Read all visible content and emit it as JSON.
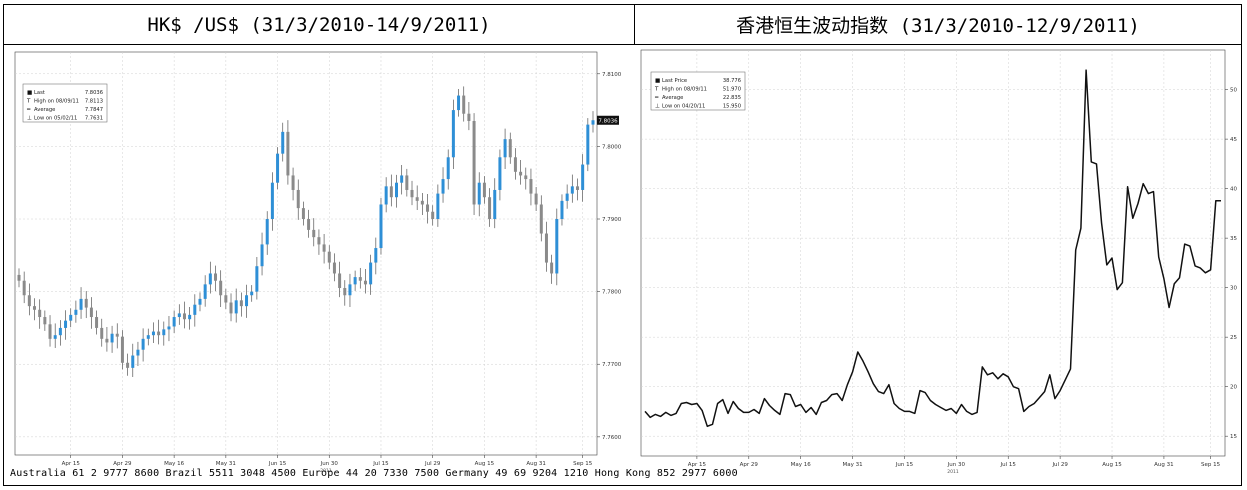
{
  "headers": {
    "left": "HK$ /US$ (31/3/2010-14/9/2011)",
    "right": "香港恒生波动指数 (31/3/2010-12/9/2011)"
  },
  "footer_text": "Australia 61 2 9777 8600 Brazil 5511 3048 4500 Europe 44 20 7330 7500 Germany 49 69 9204 1210 Hong Kong 852 2977 6000",
  "colors": {
    "up": "#2e8fd6",
    "down": "#8a8a8a",
    "line": "#111111",
    "grid": "#d0d0d0"
  },
  "chart_data": [
    {
      "type": "candlestick",
      "title": "HK$ /US$ (31/3/2010-14/9/2011)",
      "year_label": "2011",
      "ylim": [
        7.7575,
        7.813
      ],
      "yticks": [
        7.76,
        7.77,
        7.78,
        7.79,
        7.8,
        7.81
      ],
      "ytick_labels": [
        "7.7600",
        "7.7700",
        "7.7800",
        "7.7900",
        "7.8000",
        "7.8100"
      ],
      "xtick_labels": [
        "Apr 15",
        "Apr 29",
        "May 16",
        "May 31",
        "Jun 15",
        "Jun 30",
        "Jul 15",
        "Jul 29",
        "Aug 15",
        "Aug 31",
        "Sep 15"
      ],
      "xtick_index": [
        10,
        20,
        30,
        40,
        50,
        60,
        70,
        80,
        90,
        100,
        109
      ],
      "n_points": 112,
      "last_tag": "7.8036",
      "legend": [
        {
          "icon": "square",
          "label": "Last",
          "value": "7.8036"
        },
        {
          "icon": "high",
          "label": "High on 08/09/11",
          "value": "7.8113"
        },
        {
          "icon": "avg",
          "label": "Average",
          "value": "7.7847"
        },
        {
          "icon": "low",
          "label": "Low on 05/02/11",
          "value": "7.7631"
        }
      ],
      "closes": [
        7.7815,
        7.7795,
        7.778,
        7.7775,
        7.7765,
        7.7755,
        7.7735,
        7.774,
        7.775,
        7.776,
        7.7768,
        7.7775,
        7.779,
        7.7778,
        7.7765,
        7.775,
        7.7735,
        7.773,
        7.7742,
        7.7738,
        7.7702,
        7.7695,
        7.7712,
        7.772,
        7.7735,
        7.774,
        7.7745,
        7.774,
        7.7748,
        7.7752,
        7.7765,
        7.777,
        7.7762,
        7.7768,
        7.7782,
        7.779,
        7.781,
        7.7825,
        7.7815,
        7.7795,
        7.7785,
        7.777,
        7.7788,
        7.778,
        7.7795,
        7.78,
        7.7835,
        7.7865,
        7.79,
        7.795,
        7.799,
        7.802,
        7.796,
        7.794,
        7.7915,
        7.79,
        7.7885,
        7.7875,
        7.7865,
        7.7855,
        7.784,
        7.7825,
        7.7805,
        7.7795,
        7.781,
        7.782,
        7.7815,
        7.781,
        7.784,
        7.786,
        7.792,
        7.7945,
        7.793,
        7.795,
        7.796,
        7.794,
        7.793,
        7.7925,
        7.792,
        7.791,
        7.79,
        7.7935,
        7.7955,
        7.7985,
        7.805,
        7.807,
        7.8045,
        7.8035,
        7.792,
        7.795,
        7.793,
        7.79,
        7.794,
        7.7985,
        7.801,
        7.7985,
        7.7965,
        7.796,
        7.7955,
        7.7935,
        7.792,
        7.788,
        7.784,
        7.7825,
        7.79,
        7.7925,
        7.7935,
        7.7945,
        7.794,
        7.7975,
        7.803,
        7.8036
      ]
    },
    {
      "type": "line",
      "title": "香港恒生波动指数 (31/3/2010-12/9/2011)",
      "year_label": "2011",
      "ylim": [
        13,
        54
      ],
      "yticks": [
        15,
        20,
        25,
        30,
        35,
        40,
        45,
        50
      ],
      "ytick_labels": [
        "15",
        "20",
        "25",
        "30",
        "35",
        "40",
        "45",
        "50"
      ],
      "xtick_labels": [
        "Apr 15",
        "Apr 29",
        "May 16",
        "May 31",
        "Jun 15",
        "Jun 30",
        "Jul 15",
        "Jul 29",
        "Aug 15",
        "Aug 31",
        "Sep 15"
      ],
      "xtick_index": [
        10,
        20,
        30,
        40,
        50,
        60,
        70,
        80,
        90,
        100,
        109
      ],
      "n_points": 112,
      "legend": [
        {
          "icon": "square",
          "label": "Last Price",
          "value": "38.776"
        },
        {
          "icon": "high",
          "label": "High on 08/09/11",
          "value": "51.970"
        },
        {
          "icon": "avg",
          "label": "Average",
          "value": "22.835"
        },
        {
          "icon": "low",
          "label": "Low on 04/20/11",
          "value": "15.950"
        }
      ],
      "values": [
        17.5,
        16.9,
        17.2,
        17.0,
        17.4,
        17.1,
        17.3,
        18.3,
        18.4,
        18.2,
        18.3,
        17.6,
        16.0,
        16.2,
        18.3,
        18.7,
        17.3,
        18.5,
        17.8,
        17.4,
        17.4,
        17.7,
        17.3,
        18.8,
        18.1,
        17.6,
        17.2,
        19.3,
        19.2,
        18.0,
        18.2,
        17.4,
        17.9,
        17.2,
        18.4,
        18.6,
        19.2,
        19.3,
        18.6,
        20.2,
        21.5,
        23.5,
        22.6,
        21.5,
        20.3,
        19.5,
        19.3,
        20.2,
        18.3,
        17.8,
        17.5,
        17.5,
        17.3,
        19.6,
        19.4,
        18.6,
        18.2,
        17.9,
        17.6,
        17.8,
        17.3,
        18.2,
        17.5,
        17.2,
        17.4,
        22.0,
        21.2,
        21.4,
        20.8,
        21.3,
        21.0,
        20.0,
        19.8,
        17.5,
        18.0,
        18.3,
        18.9,
        19.5,
        21.2,
        18.8,
        19.6,
        20.7,
        21.8,
        33.8,
        36.0,
        51.97,
        42.7,
        42.5,
        36.5,
        32.3,
        33.0,
        29.8,
        30.5,
        40.2,
        37.0,
        38.5,
        40.5,
        39.5,
        39.7,
        33.1,
        30.9,
        28.0,
        30.4,
        31.0,
        34.4,
        34.2,
        32.2,
        32.0,
        31.5,
        31.8,
        38.776,
        38.776
      ]
    }
  ]
}
